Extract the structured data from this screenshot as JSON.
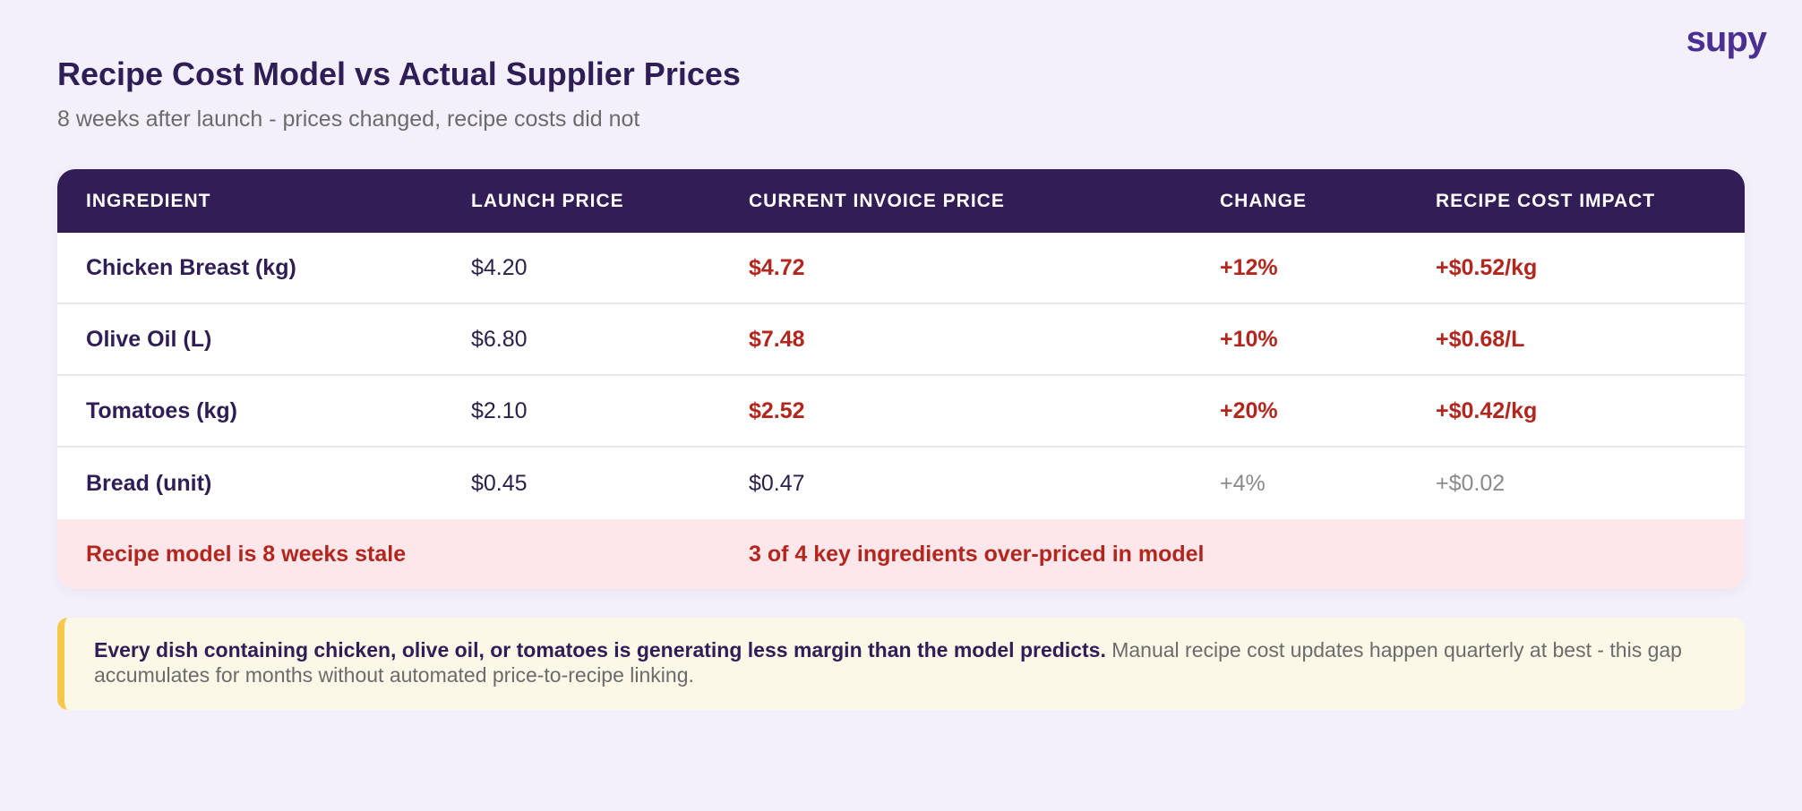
{
  "logo": "supy",
  "header": {
    "title": "Recipe Cost Model vs Actual Supplier Prices",
    "subtitle": "8 weeks after launch - prices changed, recipe costs did not"
  },
  "table": {
    "columns": [
      "INGREDIENT",
      "LAUNCH PRICE",
      "CURRENT INVOICE PRICE",
      "CHANGE",
      "RECIPE COST IMPACT"
    ],
    "rows": [
      [
        "Chicken Breast (kg)",
        "$4.20",
        "$4.72",
        "+12%",
        "+$0.52/kg"
      ],
      [
        "Olive Oil (L)",
        "$6.80",
        "$7.48",
        "+10%",
        "+$0.68/L"
      ],
      [
        "Tomatoes (kg)",
        "$2.10",
        "$2.52",
        "+20%",
        "+$0.42/kg"
      ],
      [
        "Bread (unit)",
        "$0.45",
        "$0.47",
        "+4%",
        "+$0.02"
      ]
    ],
    "summary": [
      "Recipe model is 8 weeks stale",
      "3 of 4 key ingredients over-priced in model"
    ]
  },
  "callout": {
    "bold": "Every dish containing chicken, olive oil, or tomatoes is generating less margin than the model predicts.",
    "text": "Manual recipe cost updates happen quarterly at best - this gap accumulates for months without automated price-to-recipe linking."
  }
}
